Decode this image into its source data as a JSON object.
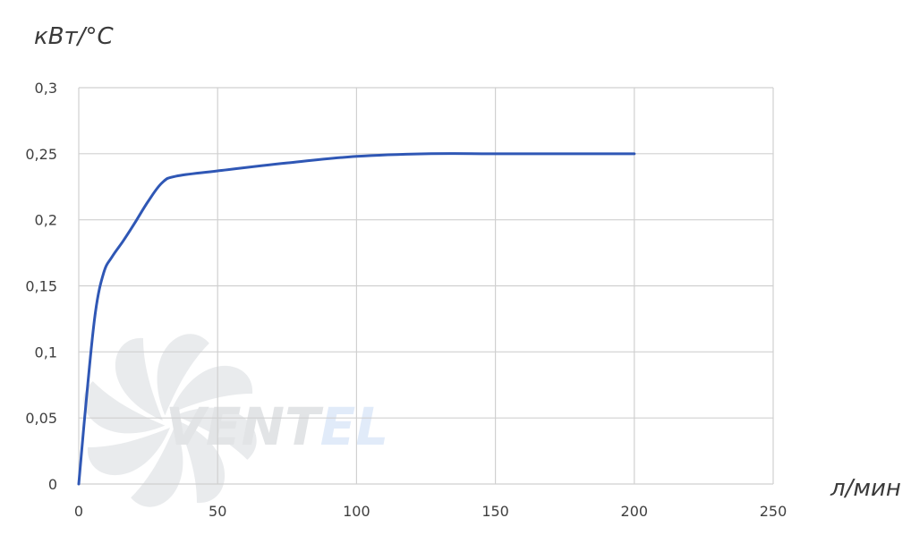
{
  "chart_data": {
    "type": "line",
    "ylabel": "кВт/°С",
    "xlabel": "л/мин",
    "xlim": [
      0,
      250
    ],
    "ylim": [
      0,
      0.3
    ],
    "x_ticks": [
      0,
      50,
      100,
      150,
      200,
      250
    ],
    "x_tick_labels": [
      "0",
      "50",
      "100",
      "150",
      "200",
      "250"
    ],
    "y_ticks": [
      0,
      0.05,
      0.1,
      0.15,
      0.2,
      0.25,
      0.3
    ],
    "y_tick_labels": [
      "0",
      "0,05",
      "0,1",
      "0,15",
      "0,2",
      "0,25",
      "0,3"
    ],
    "grid": true,
    "series": [
      {
        "color": "#2f57b5",
        "x": [
          0,
          3,
          6,
          9,
          12,
          16,
          20,
          25,
          30,
          35,
          50,
          75,
          100,
          125,
          150,
          175,
          200
        ],
        "values": [
          0,
          0.07,
          0.13,
          0.16,
          0.172,
          0.184,
          0.197,
          0.214,
          0.228,
          0.233,
          0.237,
          0.243,
          0.248,
          0.25,
          0.25,
          0.25,
          0.25
        ]
      }
    ]
  },
  "watermark": {
    "text_dark": "VENT",
    "text_accent": "EL",
    "icon": "fan-icon"
  }
}
